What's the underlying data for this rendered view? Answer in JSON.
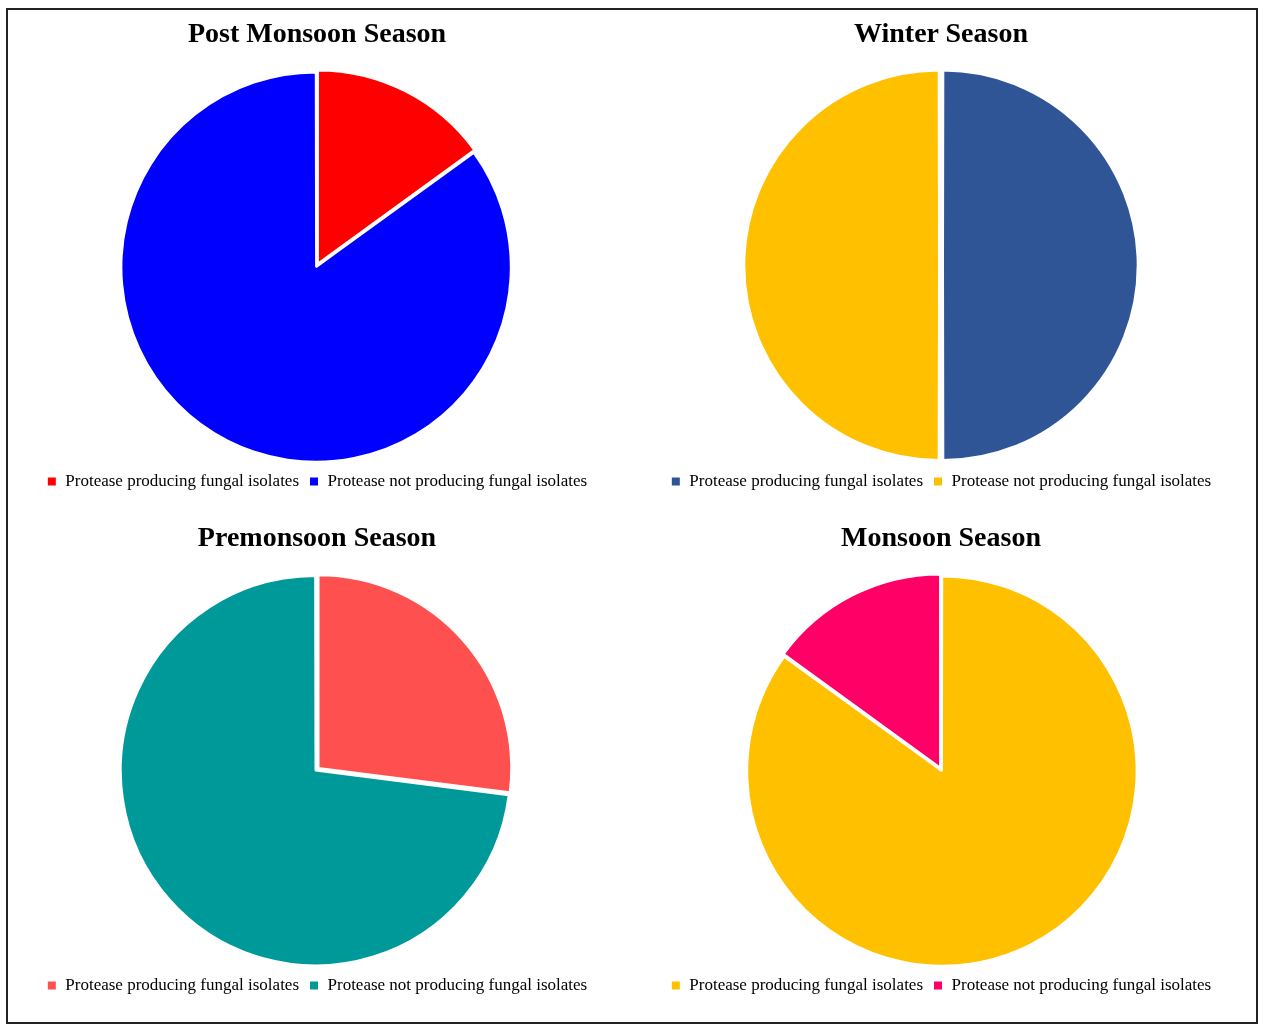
{
  "chart_data": [
    {
      "type": "pie",
      "title": "Post Monsoon Season",
      "categories": [
        "Protease producing fungal isolates",
        "Protease not producing fungal isolates"
      ],
      "values": [
        15,
        85
      ],
      "colors": [
        "#ff0000",
        "#0000ff"
      ],
      "legend": "bottom"
    },
    {
      "type": "pie",
      "title": "Winter Season",
      "categories": [
        "Protease producing fungal isolates",
        "Protease not producing fungal isolates"
      ],
      "values": [
        50,
        50
      ],
      "colors": [
        "#2f5597",
        "#ffc000"
      ],
      "legend": "bottom"
    },
    {
      "type": "pie",
      "title": "Premonsoon Season",
      "categories": [
        "Protease producing fungal isolates",
        "Protease not producing fungal isolates"
      ],
      "values": [
        27,
        73
      ],
      "colors": [
        "#ff5050",
        "#009999"
      ],
      "legend": "bottom"
    },
    {
      "type": "pie",
      "title": "Monsoon Season",
      "categories": [
        "Protease producing fungal isolates",
        "Protease not producing fungal isolates"
      ],
      "values": [
        85,
        15
      ],
      "colors": [
        "#ffc000",
        "#ff0066"
      ],
      "legend": "bottom"
    }
  ]
}
